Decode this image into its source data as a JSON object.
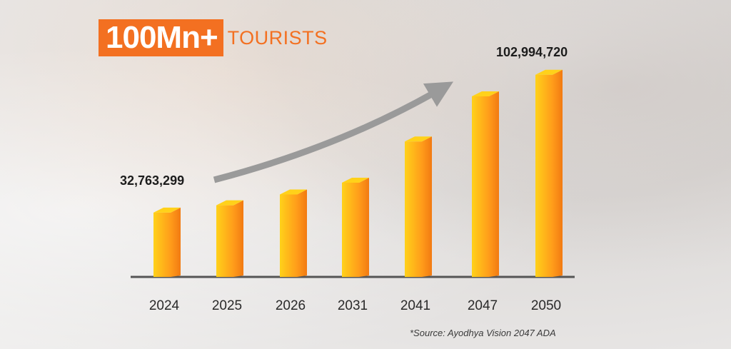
{
  "title": {
    "highlight": "100Mn+",
    "rest": "TOURISTS"
  },
  "callouts": {
    "start": "32,763,299",
    "end": "102,994,720"
  },
  "source": "*Source: Ayodhya Vision 2047 ADA",
  "colors": {
    "accent": "#f37021",
    "bar_light": "#ffd11a",
    "bar_mid": "#ff9c1a",
    "bar_dark": "#f27a12",
    "arrow": "#9a9a9a",
    "baseline": "#555555"
  },
  "chart_data": {
    "type": "bar",
    "categories": [
      "2024",
      "2025",
      "2026",
      "2031",
      "2041",
      "2047",
      "2050"
    ],
    "values": [
      32763299,
      36500000,
      42000000,
      48000000,
      69000000,
      92000000,
      102994720
    ],
    "title": "100Mn+ TOURISTS",
    "xlabel": "",
    "ylabel": "",
    "ylim": [
      0,
      112000000
    ],
    "grid": false,
    "legend": "none"
  }
}
